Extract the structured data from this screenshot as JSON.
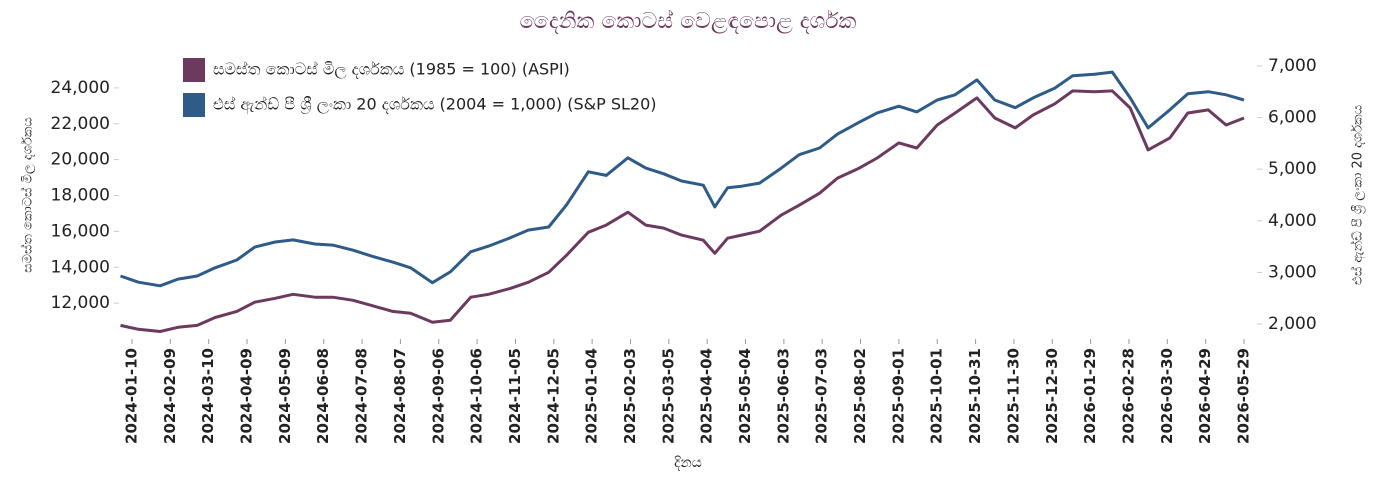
{
  "chart_data": {
    "type": "line",
    "title": "දෛනික කොටස් වෙළඳපොළ දර්ශක",
    "x_label": "දිනය",
    "y_label": "සමස්ත කොටස් මිල දර්ශකය",
    "y2_label": "එස් ඇන්ඩ් පී ශ්‍රී ලංකා 20 දර්ශකය",
    "legend": "top-left",
    "x": [
      "2024-01-01",
      "2024-01-15",
      "2024-02-01",
      "2024-02-15",
      "2024-03-01",
      "2024-03-15",
      "2024-04-01",
      "2024-04-15",
      "2024-05-01",
      "2024-05-15",
      "2024-06-01",
      "2024-06-15",
      "2024-07-01",
      "2024-07-15",
      "2024-08-01",
      "2024-08-15",
      "2024-09-01",
      "2024-09-15",
      "2024-10-01",
      "2024-10-15",
      "2024-11-01",
      "2024-11-15",
      "2024-12-01",
      "2024-12-15",
      "2025-01-01",
      "2025-01-15",
      "2025-02-01",
      "2025-02-15",
      "2025-03-01",
      "2025-03-15",
      "2025-04-01",
      "2025-04-10",
      "2025-04-20",
      "2025-05-01",
      "2025-05-15",
      "2025-06-01",
      "2025-06-15",
      "2025-07-01",
      "2025-07-15",
      "2025-08-01",
      "2025-08-15",
      "2025-09-01",
      "2025-09-15",
      "2025-10-01",
      "2025-10-15",
      "2025-11-01",
      "2025-11-15",
      "2025-12-01",
      "2025-12-15",
      "2026-01-01",
      "2026-01-15",
      "2026-02-01",
      "2026-02-15",
      "2026-03-01",
      "2026-03-15",
      "2026-04-01",
      "2026-04-15",
      "2026-05-01",
      "2026-05-15",
      "2026-05-29"
    ],
    "series": [
      {
        "name": "සමස්ත කොටස් මිල දර්ශකය (1985 = 100)  (ASPI)",
        "color": "#6b3a5e",
        "axis": "y",
        "values": [
          10760,
          10540,
          10420,
          10650,
          10760,
          11200,
          11540,
          12050,
          12270,
          12490,
          12330,
          12330,
          12160,
          11880,
          11540,
          11430,
          10930,
          11040,
          12330,
          12490,
          12820,
          13160,
          13720,
          14670,
          15950,
          16350,
          17070,
          16350,
          16180,
          15790,
          15510,
          14780,
          15620,
          15790,
          16010,
          16910,
          17460,
          18130,
          18970,
          19530,
          20090,
          20930,
          20650,
          21930,
          22600,
          23440,
          22320,
          21770,
          22490,
          23110,
          23830,
          23780,
          23830,
          22880,
          20540,
          21210,
          22600,
          22770,
          21930,
          22320
        ]
      },
      {
        "name": "එස් ඇන්ඩ් පී ශ්‍රී ලංකා 20 දර්ශකය (2004 = 1,000) (S&P SL20)",
        "color": "#2e5b88",
        "axis": "y2",
        "values": [
          2930,
          2810,
          2740,
          2870,
          2930,
          3090,
          3240,
          3490,
          3590,
          3630,
          3550,
          3530,
          3430,
          3320,
          3200,
          3090,
          2800,
          3010,
          3400,
          3510,
          3670,
          3820,
          3880,
          4310,
          4950,
          4880,
          5220,
          5020,
          4910,
          4770,
          4690,
          4270,
          4640,
          4670,
          4730,
          5020,
          5280,
          5410,
          5680,
          5910,
          6090,
          6220,
          6110,
          6340,
          6440,
          6730,
          6340,
          6190,
          6380,
          6570,
          6810,
          6840,
          6880,
          6380,
          5800,
          6150,
          6460,
          6500,
          6440,
          6340
        ]
      }
    ],
    "xlim": [
      "2024-01-01",
      "2026-06-07"
    ],
    "xticks": [
      "2024-01-10",
      "2024-02-09",
      "2024-03-10",
      "2024-04-09",
      "2024-05-09",
      "2024-06-08",
      "2024-07-08",
      "2024-08-07",
      "2024-09-06",
      "2024-10-06",
      "2024-11-05",
      "2024-12-05",
      "2025-01-04",
      "2025-02-03",
      "2025-03-05",
      "2025-04-04",
      "2025-05-04",
      "2025-06-03",
      "2025-07-03",
      "2025-08-02",
      "2025-09-01",
      "2025-10-01",
      "2025-10-31",
      "2025-11-30",
      "2025-12-30",
      "2026-01-29",
      "2026-02-28",
      "2026-03-30",
      "2026-04-29",
      "2026-05-29"
    ],
    "ylim": [
      10000,
      26000
    ],
    "yticks": [
      {
        "value": 12000,
        "label": "12,000"
      },
      {
        "value": 14000,
        "label": "14,000"
      },
      {
        "value": 16000,
        "label": "16,000"
      },
      {
        "value": 18000,
        "label": "18,000"
      },
      {
        "value": 20000,
        "label": "20,000"
      },
      {
        "value": 22000,
        "label": "22,000"
      },
      {
        "value": 24000,
        "label": "24,000"
      }
    ],
    "y2lim": [
      1710,
      7270
    ],
    "y2ticks": [
      {
        "value": 2000,
        "label": "2,000"
      },
      {
        "value": 3000,
        "label": "3,000"
      },
      {
        "value": 4000,
        "label": "4,000"
      },
      {
        "value": 5000,
        "label": "5,000"
      },
      {
        "value": 6000,
        "label": "6,000"
      },
      {
        "value": 7000,
        "label": "7,000"
      }
    ]
  }
}
